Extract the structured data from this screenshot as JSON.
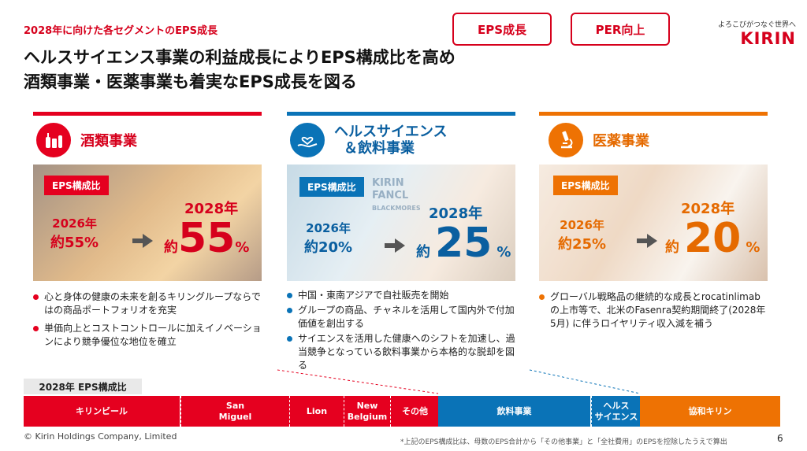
{
  "header": {
    "subtitle": "2028年に向けた各セグメントのEPS成長",
    "headline_line1": "ヘルスサイエンス事業の利益成長によりEPS構成比を高め",
    "headline_line2": "酒類事業・医薬事業も着実なEPS成長を図る",
    "tag_eps": "EPS成長",
    "tag_per": "PER向上"
  },
  "logo": {
    "tagline": "よろこびがつなぐ世界へ",
    "name": "KIRIN"
  },
  "badge_label": "EPS構成比",
  "columns": [
    {
      "title": "酒類事業",
      "year_2026": "2026年",
      "approx_2026": "約55%",
      "year_2028": "2028年",
      "approx_prefix": "約",
      "value_2028": "55",
      "pct": "%",
      "bullets": [
        "心と身体の健康の未来を創るキリングループならではの商品ポートフォリオを充実",
        "単価向上とコストコントロールに加えイノベーションにより競争優位な地位を確立"
      ]
    },
    {
      "title_line1": "ヘルスサイエンス",
      "title_line2": "＆飲料事業",
      "year_2026": "2026年",
      "approx_2026": "約20%",
      "year_2028": "2028年",
      "approx_prefix": "約",
      "value_2028": "25",
      "pct": "%",
      "photo_words": [
        "KIRIN",
        "FANCL",
        "BLACKMORES"
      ],
      "bullets": [
        "中国・東南アジアで自社販売を開始",
        "グループの商品、チャネルを活用して国内外で付加価値を創出する",
        "サイエンスを活用した健康へのシフトを加速し、過当競争となっている飲料事業から本格的な脱却を図る"
      ]
    },
    {
      "title": "医薬事業",
      "year_2026": "2026年",
      "approx_2026": "約25%",
      "year_2028": "2028年",
      "approx_prefix": "約",
      "value_2028": "20",
      "pct": "%",
      "bullets": [
        "グローバル戦略品の継続的な成長とrocatinlimabの上市等で、北米のFasenra契約期間終了(2028年5月) に伴うロイヤリティ収入減を補う"
      ]
    }
  ],
  "ratio_bar": {
    "label": "2028年 EPS構成比",
    "segments": [
      {
        "name": "キリンビール",
        "share": 0.247
      },
      {
        "name_line1": "San",
        "name_line2": "Miguel",
        "share": 0.171
      },
      {
        "name": "Lion",
        "share": 0.085
      },
      {
        "name_line1": "New",
        "name_line2": "Belgium",
        "share": 0.06
      },
      {
        "name": "その他",
        "share": 0.061
      },
      {
        "name": "飲料事業",
        "share": 0.181
      },
      {
        "name_line1": "ヘルス",
        "name_line2": "サイエンス",
        "share": 0.066
      },
      {
        "name": "協和キリン",
        "share": 0.186
      }
    ]
  },
  "footer": {
    "copyright": "© Kirin Holdings Company, Limited",
    "note": "*上記のEPS構成比は、母数のEPS合計から「その他事業」と「全社費用」のEPSを控除したうえで算出",
    "page": "6"
  },
  "colors": {
    "red": "#e5001f",
    "blue": "#0a73b7",
    "orange": "#ee7203"
  },
  "icons": [
    "bottles-icon",
    "heart-hand-icon",
    "microscope-icon",
    "arrow-right-icon"
  ]
}
